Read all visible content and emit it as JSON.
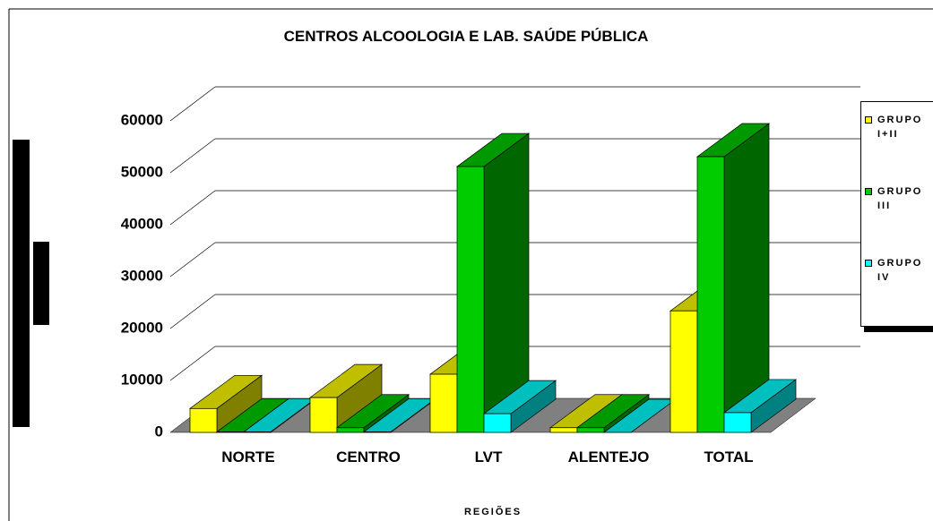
{
  "chart_data": {
    "type": "bar3d",
    "title": "CENTROS ALCOOLOGIA E LAB. SAÚDE PÚBLICA",
    "x_label": "REGIÕES",
    "categories": [
      "NORTE",
      "CENTRO",
      "LVT",
      "ALENTEJO",
      "TOTAL"
    ],
    "series": [
      {
        "name": "GRUPO I+II",
        "color": "#ffff00",
        "values": [
          4600,
          6700,
          11200,
          900,
          23400
        ]
      },
      {
        "name": "GRUPO III",
        "color": "#00cc00",
        "values": [
          100,
          900,
          51200,
          900,
          53100
        ]
      },
      {
        "name": "GRUPO IV",
        "color": "#00ffff",
        "values": [
          100,
          100,
          3600,
          0,
          3800
        ]
      }
    ],
    "ylim": [
      0,
      60000
    ],
    "yticks": [
      0,
      10000,
      20000,
      30000,
      40000,
      50000,
      60000
    ],
    "grid": true,
    "legend": "right"
  }
}
